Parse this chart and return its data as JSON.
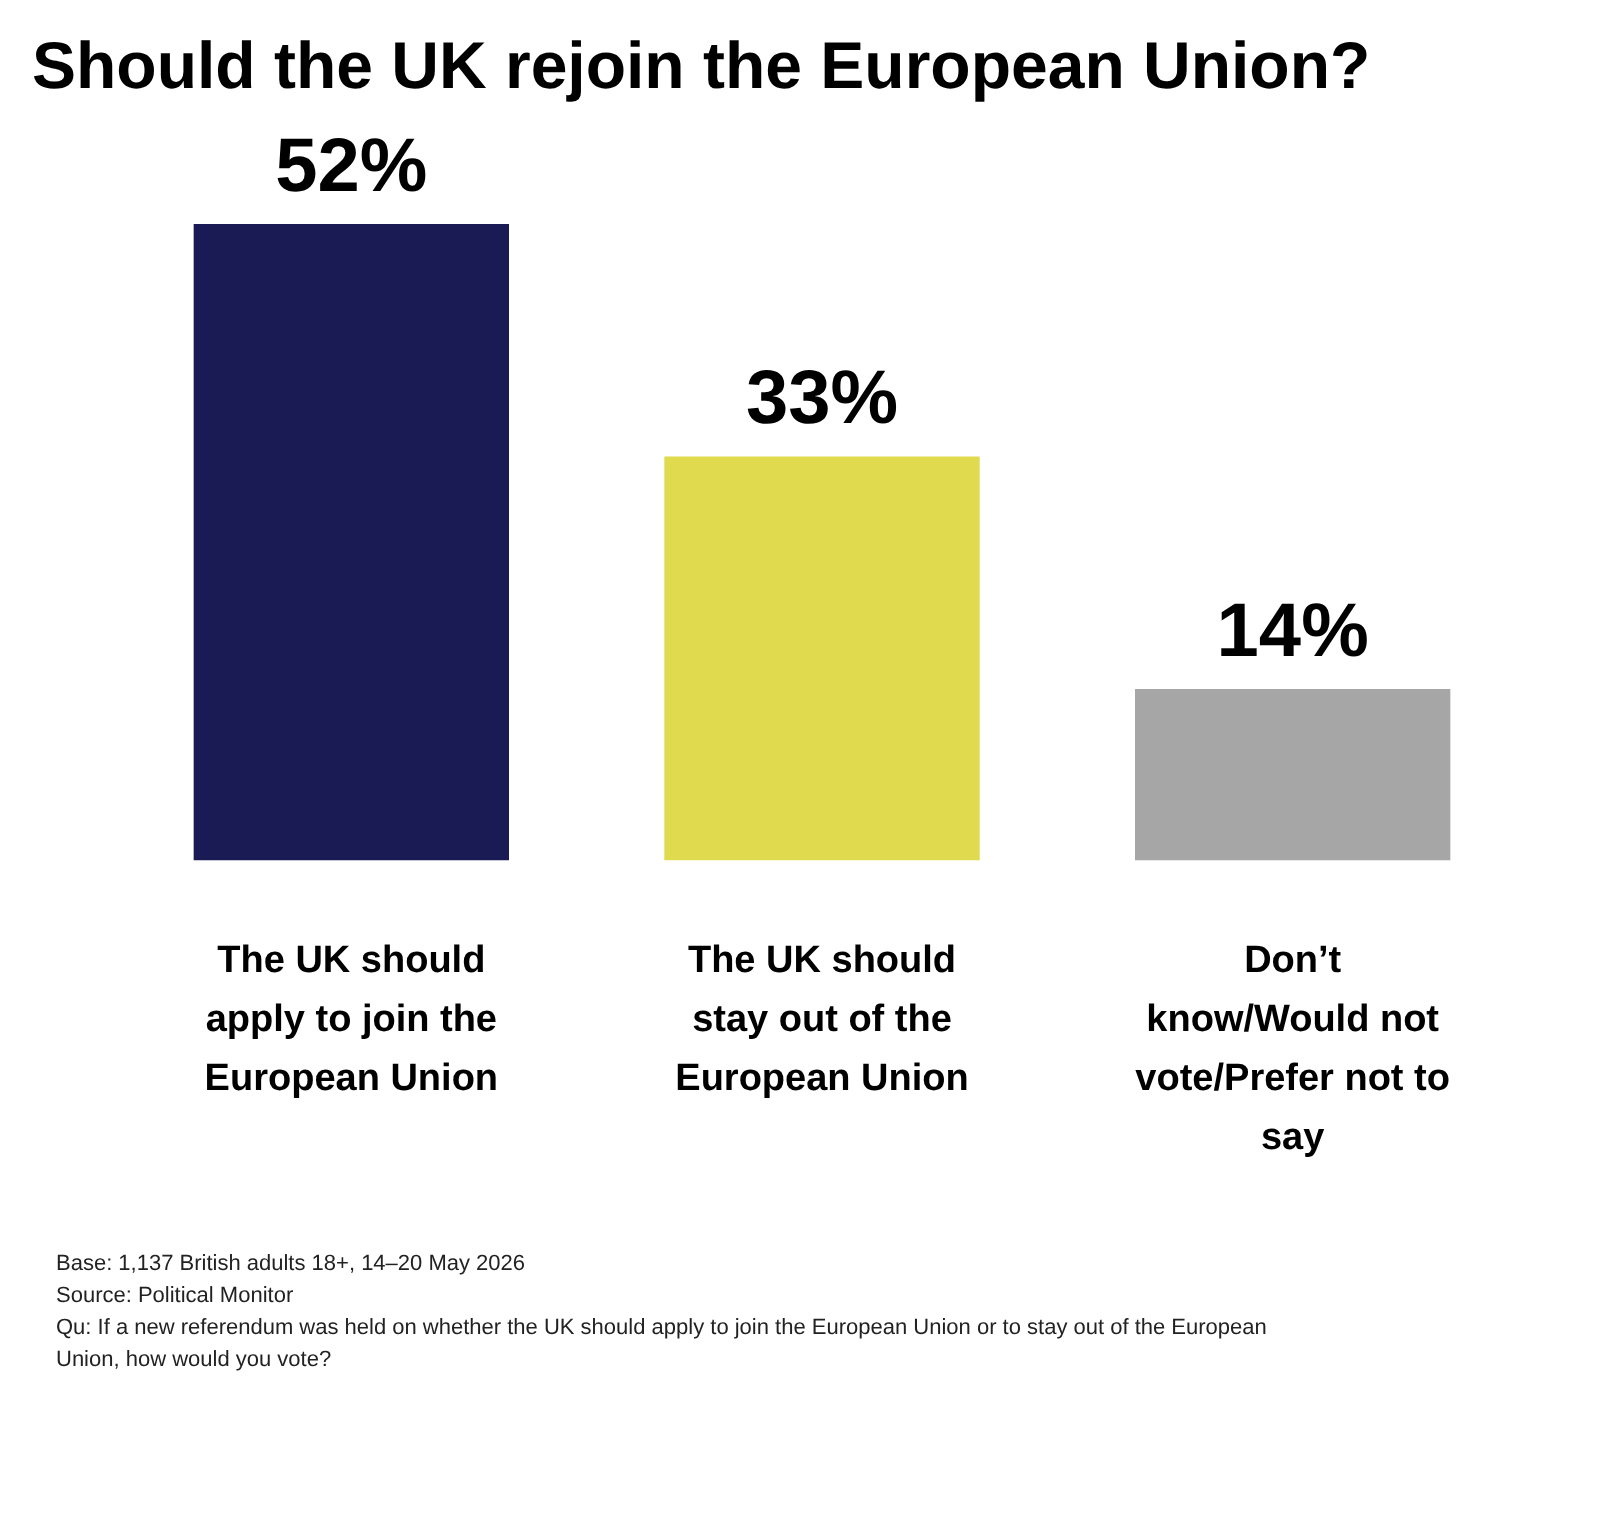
{
  "chart_data": {
    "type": "bar",
    "title": "Should the UK rejoin the European Union?",
    "categories": [
      "The UK should apply to join the European Union",
      "The UK should stay out of the European Union",
      "Don’t know/Would not vote/Prefer not to say"
    ],
    "values": [
      52,
      33,
      14
    ],
    "colors": [
      "#1a1a55",
      "#e0da4e",
      "#a6a6a6"
    ],
    "data_labels": true,
    "value_labels": [
      "52%",
      "33%",
      "14%"
    ],
    "grid": false,
    "legend": false,
    "annotations": [
      "Base: 1,137 British adults 18+, 14–20 May 2026",
      "Source: Political Monitor",
      "Qu: If a new referendum was held on whether the UK should apply to join the European Union or to stay out of the European Union, how would you vote?"
    ]
  }
}
